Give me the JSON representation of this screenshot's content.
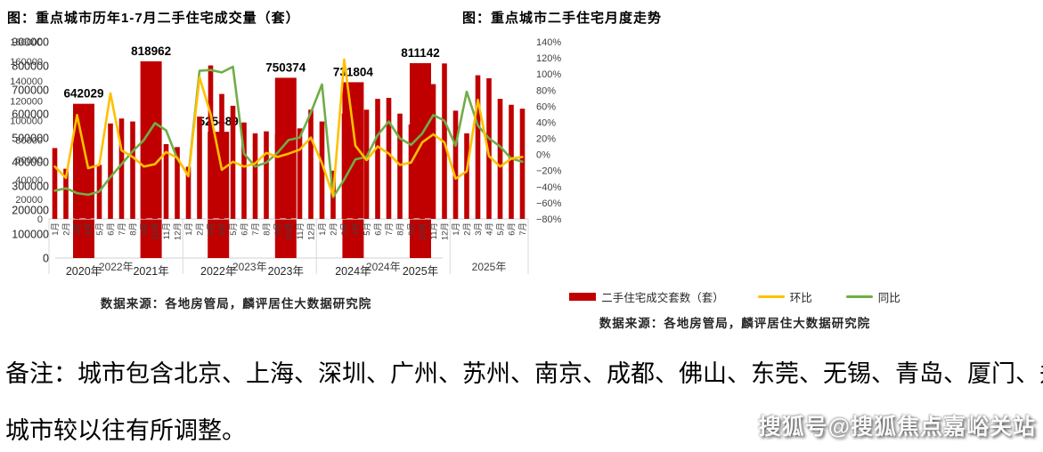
{
  "page": {
    "background": "#ffffff"
  },
  "note": {
    "line1": "备注：城市包含北京、上海、深圳、广州、苏州、南京、成都、佛山、东莞、无锡、青岛、厦门、郑州，",
    "line2": "城市较以往有所调整。"
  },
  "watermark": "搜狐号@搜狐焦点嘉峪关站",
  "colors": {
    "bar_red": "#c00000",
    "line_yellow": "#ffc000",
    "line_green": "#70ad47",
    "axis_gray": "#d9d9d9"
  },
  "chart_data": [
    {
      "type": "bar",
      "title": "图：重点城市历年1-7月二手住宅成交量（套）",
      "categories": [
        "2020年",
        "2021年",
        "2022年",
        "2023年",
        "2024年",
        "2025年"
      ],
      "values": [
        642029,
        818962,
        525489,
        750374,
        731804,
        811142
      ],
      "data_labels": [
        642029,
        818962,
        525489,
        750374,
        731804,
        811142
      ],
      "ylabel": "",
      "xlabel": "",
      "ylim": [
        0,
        900000
      ],
      "ytick_step": 100000,
      "grid": false,
      "bar_color": "#c00000",
      "source": "数据来源：各地房管局，麟评居住大数据研究院"
    },
    {
      "type": "combo_bar_line",
      "title": "图：重点城市二手住宅月度走势",
      "year_groups": [
        {
          "label": "2022年",
          "months": [
            "1月",
            "2月",
            "3月",
            "4月",
            "5月",
            "6月",
            "7月",
            "8月",
            "9月",
            "10月",
            "11月",
            "12月"
          ]
        },
        {
          "label": "2023年",
          "months": [
            "1月",
            "2月",
            "3月",
            "4月",
            "5月",
            "6月",
            "7月",
            "8月",
            "9月",
            "10月",
            "11月",
            "12月"
          ]
        },
        {
          "label": "2024年",
          "months": [
            "1月",
            "2月",
            "3月",
            "4月",
            "5月",
            "6月",
            "7月",
            "8月",
            "9月",
            "10月",
            "11月",
            "12月"
          ]
        },
        {
          "label": "2025年",
          "months": [
            "1月",
            "2月",
            "3月",
            "4月",
            "5月",
            "6月",
            "7月"
          ]
        }
      ],
      "left_axis": {
        "min": 0,
        "max": 180000,
        "step": 20000
      },
      "right_axis": {
        "min": -80,
        "max": 140,
        "step": 20,
        "suffix": "%"
      },
      "grid": false,
      "legend_position": "bottom",
      "series": [
        {
          "name": "二手住宅成交套数（套）",
          "type": "bar",
          "axis": "left",
          "color": "#c00000",
          "values": [
            72000,
            51000,
            76000,
            63000,
            55000,
            97000,
            102000,
            99000,
            84000,
            74000,
            76000,
            73000,
            53000,
            104000,
            156000,
            127000,
            115000,
            98000,
            87000,
            89000,
            86000,
            87000,
            92000,
            111000,
            99000,
            49000,
            107000,
            119000,
            111000,
            122000,
            123000,
            107000,
            96000,
            110000,
            137000,
            158000,
            110000,
            87000,
            146000,
            143000,
            122000,
            116000,
            112000
          ]
        },
        {
          "name": "环比",
          "type": "line",
          "axis": "right",
          "color": "#ffc000",
          "values": [
            -15,
            -29,
            49,
            -17,
            -13,
            76,
            5,
            -3,
            -15,
            -12,
            3,
            -4,
            -27,
            96,
            50,
            -19,
            -9,
            -15,
            -11,
            2,
            -3,
            1,
            6,
            21,
            -11,
            -51,
            118,
            11,
            -7,
            10,
            1,
            -13,
            -10,
            15,
            25,
            15,
            -30,
            -21,
            68,
            -2,
            -15,
            -5,
            -3
          ]
        },
        {
          "name": "同比",
          "type": "line",
          "axis": "right",
          "color": "#70ad47",
          "values": [
            -45,
            -42,
            -48,
            -50,
            -46,
            -28,
            -12,
            4,
            18,
            39,
            30,
            -5,
            -26,
            104,
            105,
            102,
            109,
            1,
            -15,
            -10,
            2,
            18,
            21,
            52,
            87,
            -53,
            -31,
            -6,
            -3,
            24,
            41,
            20,
            12,
            26,
            49,
            42,
            11,
            78,
            36,
            20,
            10,
            -5,
            -9
          ]
        }
      ],
      "source": "数据来源：各地房管局，麟评居住大数据研究院"
    }
  ]
}
